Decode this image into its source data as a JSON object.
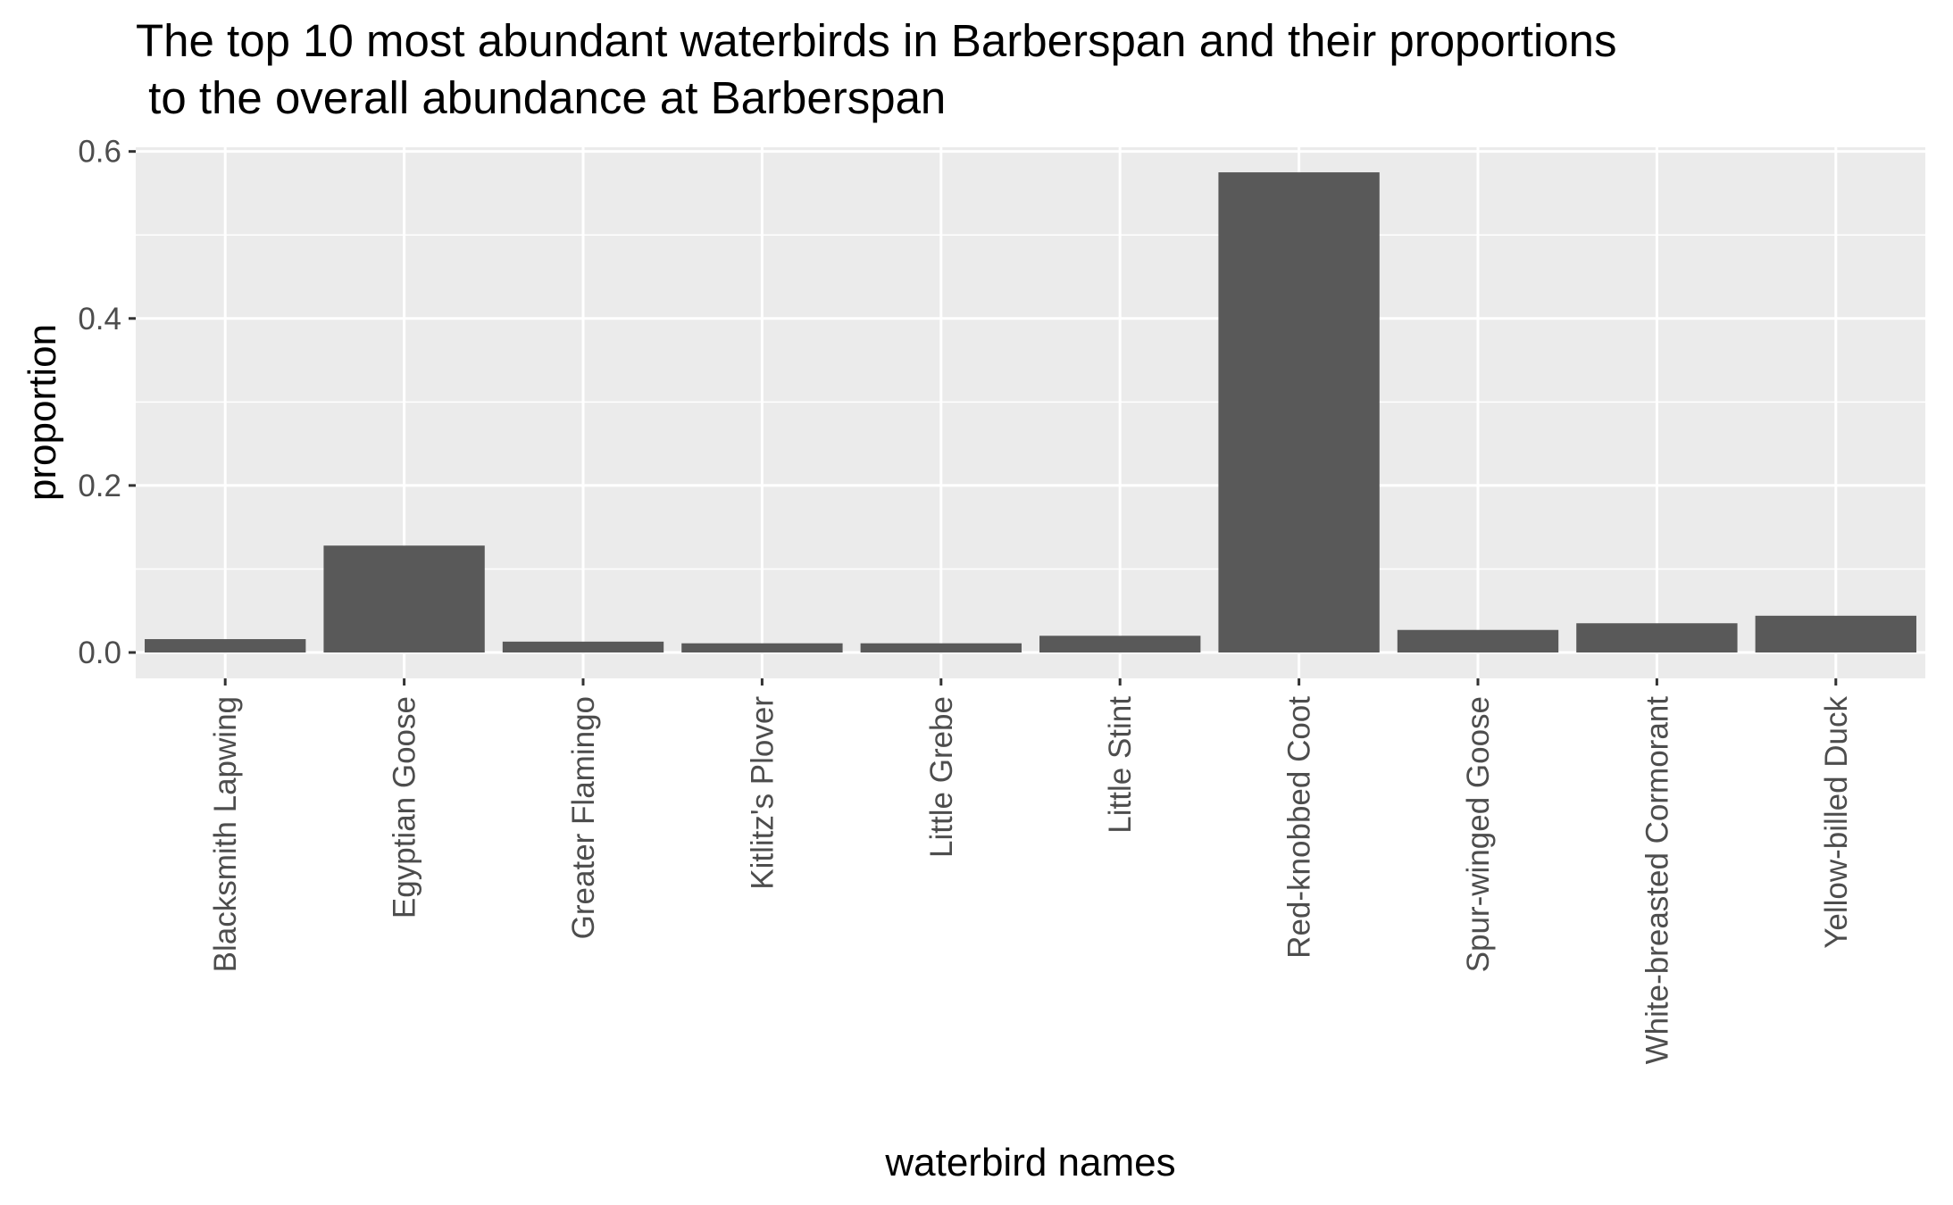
{
  "chart_data": {
    "type": "bar",
    "title_lines": [
      "The top 10 most abundant waterbirds in Barberspan and their proportions",
      " to the overall abundance at Barberspan"
    ],
    "xlabel": "waterbird names",
    "ylabel": "proportion",
    "categories": [
      "Blacksmith Lapwing",
      "Egyptian Goose",
      "Greater Flamingo",
      "Kitlitz's Plover",
      "Little Grebe",
      "Little Stint",
      "Red-knobbed Coot",
      "Spur-winged Goose",
      "White-breasted Cormorant",
      "Yellow-billed Duck"
    ],
    "values": [
      0.016,
      0.128,
      0.013,
      0.011,
      0.011,
      0.02,
      0.575,
      0.027,
      0.035,
      0.044
    ],
    "ylim": [
      -0.031,
      0.605
    ],
    "yticks": [
      0.0,
      0.2,
      0.4,
      0.6
    ],
    "ytick_labels": [
      "0.0",
      "0.2",
      "0.4",
      "0.6"
    ],
    "grid": true,
    "legend": "none",
    "colors": {
      "bar": "#595959",
      "panel": "#ebebeb",
      "grid": "#ffffff",
      "tick": "#333333",
      "tick_label": "#4d4d4d"
    }
  }
}
